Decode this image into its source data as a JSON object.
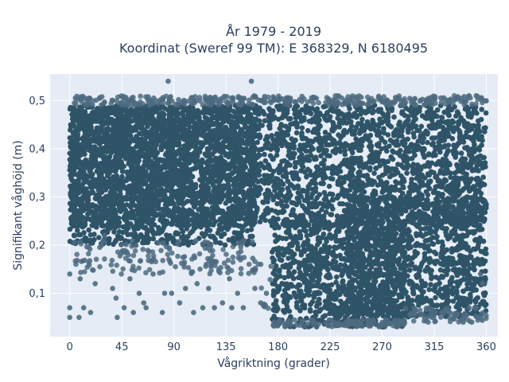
{
  "chart_data": {
    "type": "scatter",
    "title": [
      "År 1979 - 2019",
      "Koordinat (Sweref 99 TM): E 368329, N 6180495"
    ],
    "xlabel": "Vågriktning (grader)",
    "ylabel": "Signifikant våghöjd (m)",
    "xlim": [
      -17,
      370
    ],
    "ylim": [
      0.01,
      0.555
    ],
    "xticks": [
      0,
      45,
      90,
      135,
      180,
      225,
      270,
      315,
      360
    ],
    "xtick_labels": [
      "0",
      "45",
      "90",
      "135",
      "180",
      "225",
      "270",
      "315",
      "360"
    ],
    "yticks": [
      0.1,
      0.2,
      0.3,
      0.4,
      0.5
    ],
    "ytick_labels": [
      "0,1",
      "0,2",
      "0,3",
      "0,4",
      "0,5"
    ],
    "grid": true,
    "marker_color": "#2f5468",
    "outlier_color": "#4d6b80",
    "plot_bg": "#e5ecf6",
    "series": [
      {
        "description": "dense band",
        "regions": [
          {
            "x_range": [
              0,
              360
            ],
            "y_range": [
              0.24,
              0.49
            ]
          },
          {
            "x_range": [
              0,
              160
            ],
            "y_range": [
              0.2,
              0.49
            ]
          },
          {
            "x_range": [
              175,
              290
            ],
            "y_range": [
              0.03,
              0.25
            ]
          },
          {
            "x_range": [
              240,
              360
            ],
            "y_range": [
              0.05,
              0.3
            ]
          }
        ]
      }
    ],
    "sample_points": [
      {
        "x": 0,
        "y": 0.07
      },
      {
        "x": 0,
        "y": 0.05
      },
      {
        "x": 0,
        "y": 0.14
      },
      {
        "x": 8,
        "y": 0.05
      },
      {
        "x": 9,
        "y": 0.13
      },
      {
        "x": 12,
        "y": 0.07
      },
      {
        "x": 18,
        "y": 0.06
      },
      {
        "x": 22,
        "y": 0.12
      },
      {
        "x": 30,
        "y": 0.22
      },
      {
        "x": 37,
        "y": 0.11
      },
      {
        "x": 40,
        "y": 0.09
      },
      {
        "x": 41,
        "y": 0.05
      },
      {
        "x": 47,
        "y": 0.07
      },
      {
        "x": 52,
        "y": 0.13
      },
      {
        "x": 55,
        "y": 0.06
      },
      {
        "x": 60,
        "y": 0.1
      },
      {
        "x": 64,
        "y": 0.08
      },
      {
        "x": 66,
        "y": 0.07
      },
      {
        "x": 72,
        "y": 0.14
      },
      {
        "x": 80,
        "y": 0.06
      },
      {
        "x": 82,
        "y": 0.1
      },
      {
        "x": 85,
        "y": 0.54
      },
      {
        "x": 88,
        "y": 0.1
      },
      {
        "x": 95,
        "y": 0.08
      },
      {
        "x": 100,
        "y": 0.11
      },
      {
        "x": 107,
        "y": 0.06
      },
      {
        "x": 110,
        "y": 0.12
      },
      {
        "x": 115,
        "y": 0.07
      },
      {
        "x": 120,
        "y": 0.11
      },
      {
        "x": 125,
        "y": 0.07
      },
      {
        "x": 132,
        "y": 0.08
      },
      {
        "x": 138,
        "y": 0.13
      },
      {
        "x": 140,
        "y": 0.07
      },
      {
        "x": 145,
        "y": 0.1
      },
      {
        "x": 150,
        "y": 0.07
      },
      {
        "x": 157,
        "y": 0.54
      },
      {
        "x": 160,
        "y": 0.11
      },
      {
        "x": 165,
        "y": 0.08
      },
      {
        "x": 170,
        "y": 0.1
      },
      {
        "x": 313,
        "y": 0.5
      },
      {
        "x": 350,
        "y": 0.07
      },
      {
        "x": 353,
        "y": 0.05
      },
      {
        "x": 357,
        "y": 0.12
      },
      {
        "x": 355,
        "y": 0.14
      },
      {
        "x": 340,
        "y": 0.04
      }
    ]
  }
}
